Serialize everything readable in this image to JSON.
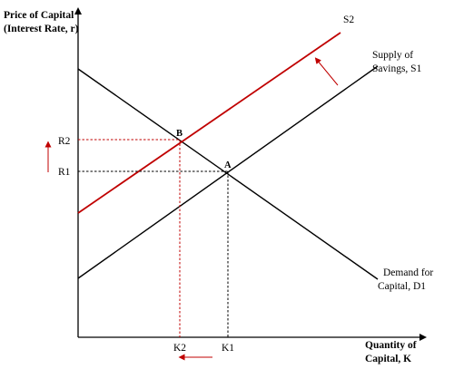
{
  "y_axis_label": [
    "Price of Capital",
    "(Interest Rate, r)"
  ],
  "x_axis_label": [
    "Quantity of",
    "Capital, K"
  ],
  "curves": {
    "s2": "S2",
    "s1": [
      "Supply of",
      "Savings, S1"
    ],
    "d1": [
      "Demand for",
      "Capital, D1"
    ]
  },
  "points": {
    "a": "A",
    "b": "B"
  },
  "ticks": {
    "r2": "R2",
    "r1": "R1",
    "k2": "K2",
    "k1": "K1"
  },
  "colors": {
    "axis": "#000000",
    "shifted_supply": "#c00000",
    "arrow": "#c00000"
  }
}
